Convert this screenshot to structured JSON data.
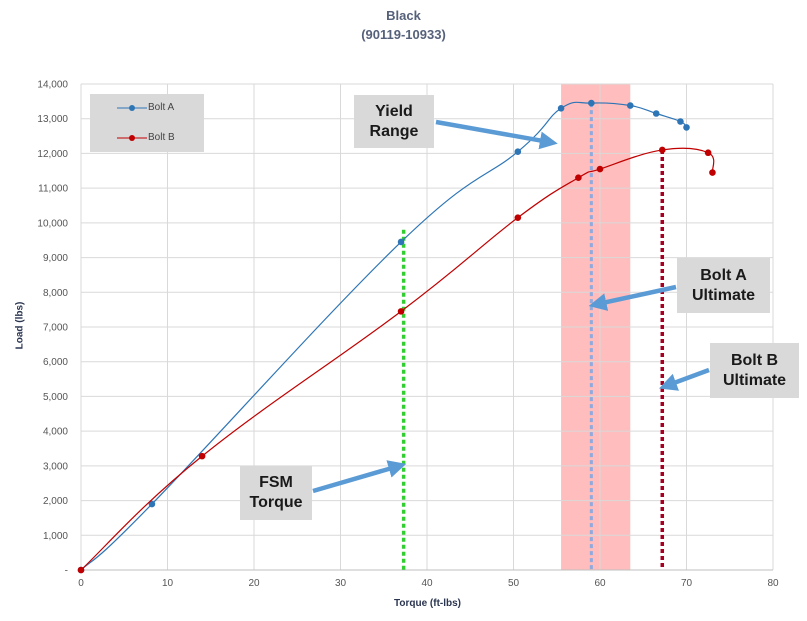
{
  "chart_data": {
    "type": "line",
    "title": "Black",
    "subtitle": "(90119-10933)",
    "xlabel": "Torque  (ft-lbs)",
    "ylabel": "Load  (lbs)",
    "xlim": [
      0,
      80
    ],
    "ylim": [
      0,
      14000
    ],
    "x_ticks": [
      "0",
      "10",
      "20",
      "30",
      "40",
      "50",
      "60",
      "70",
      "80"
    ],
    "y_ticks": [
      "-",
      "1,000",
      "2,000",
      "3,000",
      "4,000",
      "5,000",
      "6,000",
      "7,000",
      "8,000",
      "9,000",
      "10,000",
      "11,000",
      "12,000",
      "13,000",
      "14,000"
    ],
    "grid": true,
    "legend_position": "top-left",
    "series": [
      {
        "name": "Bolt A",
        "color": "#2e75b6",
        "points": [
          [
            0,
            0
          ],
          [
            8.2,
            1900
          ],
          [
            37,
            9450
          ],
          [
            50.5,
            12050
          ],
          [
            55.5,
            13300
          ],
          [
            59,
            13450
          ],
          [
            63.5,
            13380
          ],
          [
            66.5,
            13150
          ],
          [
            69.3,
            12920
          ],
          [
            70,
            12750
          ]
        ]
      },
      {
        "name": "Bolt B",
        "color": "#c00000",
        "points": [
          [
            0,
            0
          ],
          [
            14,
            3280
          ],
          [
            37,
            7450
          ],
          [
            50.5,
            10150
          ],
          [
            57.5,
            11300
          ],
          [
            60,
            11550
          ],
          [
            67.2,
            12100
          ],
          [
            72.5,
            12020
          ],
          [
            73,
            11450
          ]
        ]
      }
    ],
    "yield_range": {
      "x_start": 55.5,
      "x_end": 63.5,
      "color": "#ff9999"
    },
    "reference_lines": [
      {
        "name": "FSM Torque",
        "x": 37.3,
        "y_top": 9800,
        "color": "#33cc33"
      },
      {
        "name": "Bolt A Ultimate",
        "x": 59,
        "y_top": 13450,
        "color": "#8faadc"
      },
      {
        "name": "Bolt B Ultimate",
        "x": 67.2,
        "y_top": 12100,
        "color": "#a50021"
      }
    ],
    "annotations": [
      {
        "id": "yield",
        "lines": [
          "Yield",
          "Range"
        ]
      },
      {
        "id": "bolt-a",
        "lines": [
          "Bolt A",
          "Ultimate"
        ]
      },
      {
        "id": "bolt-b",
        "lines": [
          "Bolt B",
          "Ultimate"
        ]
      },
      {
        "id": "fsm",
        "lines": [
          "FSM",
          "Torque"
        ]
      }
    ],
    "arrow_color": "#5b9bd5",
    "gridline_color": "#d9d9d9"
  }
}
